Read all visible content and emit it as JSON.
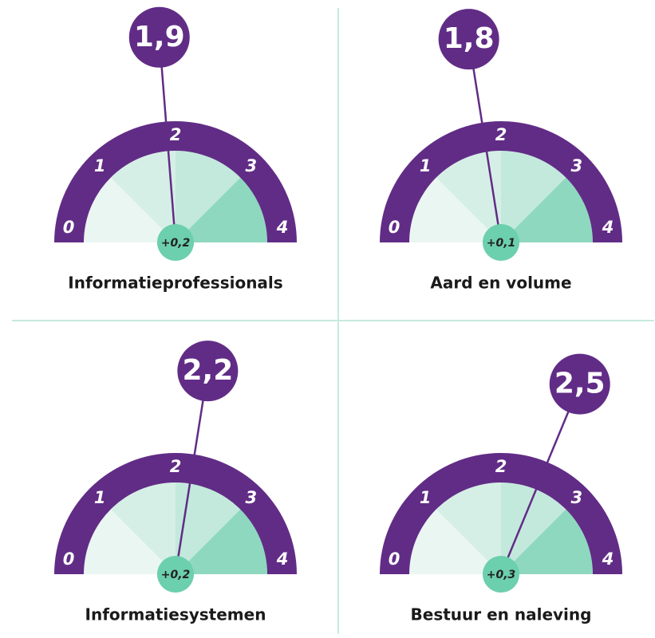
{
  "chart_data": [
    {
      "type": "gauge",
      "title": "Informatieprofessionals",
      "value": 1.9,
      "value_label": "1,9",
      "delta": 0.2,
      "delta_label": "+0,2",
      "ylim": [
        0,
        4
      ],
      "yticks": [
        0,
        1,
        2,
        3,
        4
      ]
    },
    {
      "type": "gauge",
      "title": "Aard en volume",
      "value": 1.8,
      "value_label": "1,8",
      "delta": 0.1,
      "delta_label": "+0,1",
      "ylim": [
        0,
        4
      ],
      "yticks": [
        0,
        1,
        2,
        3,
        4
      ]
    },
    {
      "type": "gauge",
      "title": "Informatiesystemen",
      "value": 2.2,
      "value_label": "2,2",
      "delta": 0.2,
      "delta_label": "+0,2",
      "ylim": [
        0,
        4
      ],
      "yticks": [
        0,
        1,
        2,
        3,
        4
      ]
    },
    {
      "type": "gauge",
      "title": "Bestuur en naleving",
      "value": 2.5,
      "value_label": "2,5",
      "delta": 0.3,
      "delta_label": "+0,3",
      "ylim": [
        0,
        4
      ],
      "yticks": [
        0,
        1,
        2,
        3,
        4
      ]
    }
  ]
}
